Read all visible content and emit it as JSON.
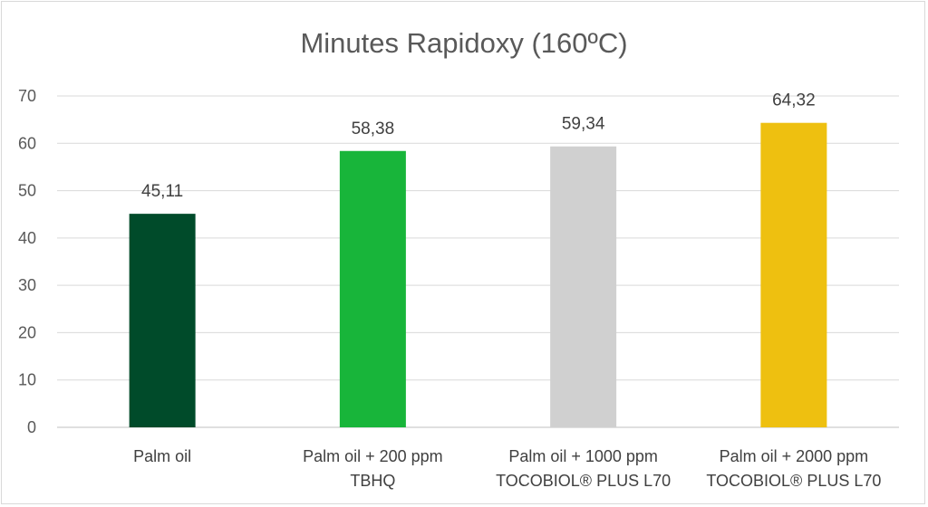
{
  "chart_data": {
    "type": "bar",
    "title": "Minutes Rapidoxy (160ºC)",
    "categories": [
      [
        "Palm oil"
      ],
      [
        "Palm oil + 200 ppm",
        "TBHQ"
      ],
      [
        "Palm oil + 1000 ppm",
        "TOCOBIOL® PLUS L70"
      ],
      [
        "Palm oil + 2000 ppm",
        "TOCOBIOL® PLUS L70"
      ]
    ],
    "values": [
      45.11,
      58.38,
      59.34,
      64.32
    ],
    "data_labels": [
      "45,11",
      "58,38",
      "59,34",
      "64,32"
    ],
    "colors": [
      "#004b2a",
      "#18b53a",
      "#d0d0d0",
      "#eec010"
    ],
    "ylim": [
      0,
      70
    ],
    "yticks": [
      0,
      10,
      20,
      30,
      40,
      50,
      60,
      70
    ],
    "grid": true,
    "legend": "none",
    "xlabel": "",
    "ylabel": ""
  }
}
